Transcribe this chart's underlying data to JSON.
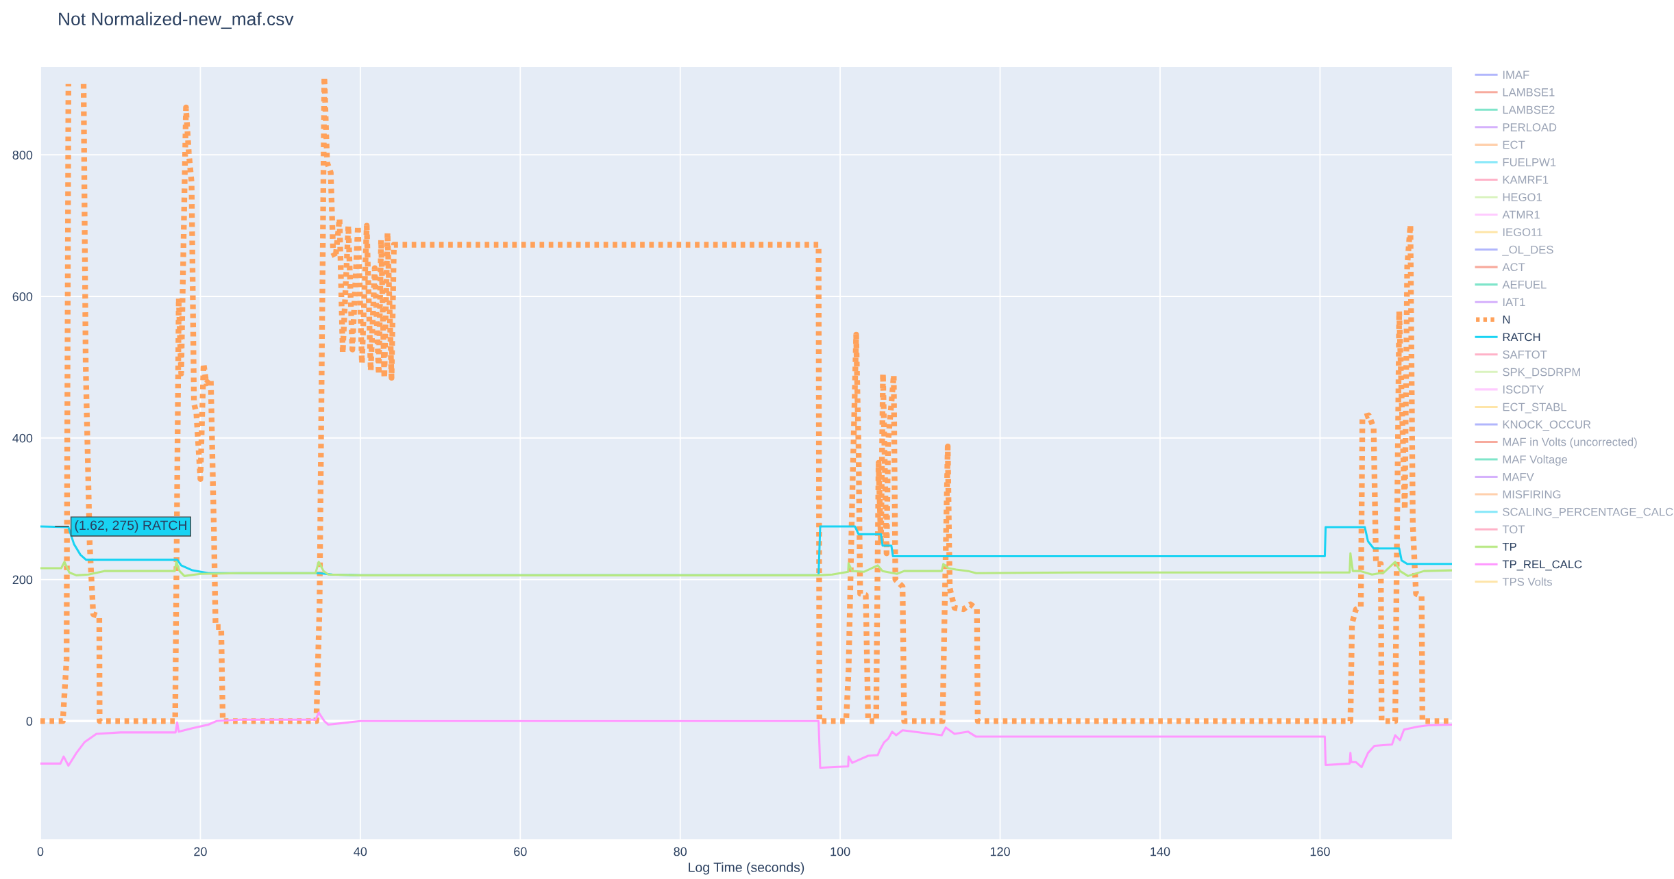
{
  "chart_data": {
    "type": "line",
    "title": "Not Normalized-new_maf.csv",
    "xlabel": "Log Time (seconds)",
    "xlim": [
      0,
      176.5
    ],
    "ylim": [
      -167,
      924
    ],
    "xticks": [
      0,
      20,
      40,
      60,
      80,
      100,
      120,
      140,
      160
    ],
    "yticks": [
      0,
      200,
      400,
      600,
      800
    ],
    "grid": true,
    "legend": "right",
    "annotations": [
      {
        "text": "(1.62, 275) RATCH",
        "x": 1.62,
        "y": 275
      }
    ],
    "series": [
      {
        "name": "IMAF",
        "color": "#636efa"
      },
      {
        "name": "LAMBSE1",
        "color": "#ef553b"
      },
      {
        "name": "LAMBSE2",
        "color": "#00cc96"
      },
      {
        "name": "PERLOAD",
        "color": "#ab63fa"
      },
      {
        "name": "ECT",
        "color": "#ffa15a"
      },
      {
        "name": "FUELPW1",
        "color": "#19d3f3"
      },
      {
        "name": "KAMRF1",
        "color": "#ff6692"
      },
      {
        "name": "HEGO1",
        "color": "#b6e880"
      },
      {
        "name": "ATMR1",
        "color": "#ff97ff"
      },
      {
        "name": "IEGO11",
        "color": "#fecb52"
      },
      {
        "name": "_OL_DES",
        "color": "#636efa"
      },
      {
        "name": "ACT",
        "color": "#ef553b"
      },
      {
        "name": "AEFUEL",
        "color": "#00cc96"
      },
      {
        "name": "IAT1",
        "color": "#ab63fa"
      },
      {
        "name": "N",
        "color": "#ffa15a",
        "line_style": "dotted",
        "x": [
          0,
          2.8,
          3.27,
          3.5,
          4.4,
          5.4,
          5.66,
          6.16,
          6.6,
          7.36,
          7.4,
          16.85,
          17.3,
          17.6,
          18.2,
          18.55,
          18.9,
          19.2,
          19.5,
          20.0,
          20.4,
          20.75,
          21.3,
          21.7,
          21.9,
          22.6,
          22.8,
          34.5,
          34.9,
          35.5,
          35.85,
          36.3,
          36.6,
          36.9,
          37.4,
          37.8,
          38.5,
          39.0,
          39.7,
          40.2,
          40.8,
          41.3,
          41.8,
          42.3,
          42.6,
          43.0,
          43.4,
          43.9,
          44.2,
          97.3,
          97.4,
          100.75,
          101.05,
          101.5,
          102.0,
          102.3,
          102.5,
          103.2,
          103.5,
          104.5,
          104.8,
          105.1,
          105.35,
          105.8,
          106.0,
          106.7,
          106.9,
          107.8,
          108.0,
          112.8,
          113.45,
          113.7,
          114.3,
          115.4,
          116.3,
          117.1,
          117.2,
          163.8,
          164.0,
          164.5,
          165.1,
          165.3,
          166.1,
          166.7,
          167.0,
          167.6,
          167.7,
          169.4,
          169.9,
          170.6,
          170.9,
          171.3,
          171.6,
          172.0,
          172.7,
          172.8,
          176.5
        ],
        "values": [
          0,
          0,
          87,
          900,
          null,
          900,
          505,
          250,
          151,
          148,
          0,
          0,
          598,
          491,
          867,
          803,
          761,
          449,
          435,
          342,
          505,
          477,
          484,
          265,
          133,
          133,
          0,
          0,
          162,
          910,
          789,
          775,
          662,
          655,
          710,
          520,
          700,
          525,
          700,
          505,
          700,
          495,
          640,
          490,
          680,
          485,
          690,
          485,
          673,
          673,
          0,
          0,
          72,
          311,
          546,
          385,
          180,
          178,
          0,
          0,
          365,
          250,
          491,
          237,
          395,
          489,
          200,
          190,
          0,
          0,
          388,
          188,
          160,
          158,
          165,
          158,
          0,
          0,
          138,
          158,
          161,
          429,
          432,
          415,
          222,
          222,
          0,
          0,
          579,
          299,
          643,
          701,
          277,
          180,
          177,
          0,
          0
        ]
      },
      {
        "name": "RATCH",
        "color": "#19d3f3",
        "x": [
          0,
          3.5,
          4.2,
          5.0,
          5.7,
          17.1,
          17.6,
          19.0,
          21.0,
          34.8,
          36.5,
          40,
          97.3,
          97.5,
          101.85,
          102.3,
          105.1,
          105.3,
          106.4,
          106.6,
          160.6,
          160.7,
          165.6,
          166.0,
          166.7,
          169.9,
          170.2,
          170.9,
          176.5
        ],
        "values": [
          275,
          274,
          250,
          235,
          228,
          228,
          220,
          213,
          209,
          209,
          207,
          206,
          206,
          275,
          275,
          264,
          264,
          248,
          248,
          233,
          233,
          274,
          274,
          254,
          244,
          244,
          227,
          222,
          222
        ]
      },
      {
        "name": "SAFTOT",
        "color": "#ff6692"
      },
      {
        "name": "SPK_DSDRPM",
        "color": "#b6e880"
      },
      {
        "name": "ISCDTY",
        "color": "#ff97ff"
      },
      {
        "name": "ECT_STABL",
        "color": "#fecb52"
      },
      {
        "name": "KNOCK_OCCUR",
        "color": "#636efa"
      },
      {
        "name": "MAF in Volts (uncorrected)",
        "color": "#ef553b"
      },
      {
        "name": "MAF Voltage",
        "color": "#00cc96"
      },
      {
        "name": "MAFV",
        "color": "#ab63fa"
      },
      {
        "name": "MISFIRING",
        "color": "#ffa15a"
      },
      {
        "name": "SCALING_PERCENTAGE_CALC",
        "color": "#19d3f3"
      },
      {
        "name": "TOT",
        "color": "#ff6692"
      },
      {
        "name": "TP",
        "color": "#b6e880",
        "x": [
          0,
          2.6,
          3.0,
          3.6,
          4.5,
          6.0,
          8.0,
          16.8,
          17.0,
          17.4,
          18.0,
          20,
          25,
          34.4,
          34.8,
          35.4,
          36.0,
          40,
          97.3,
          99,
          101.0,
          101.05,
          101.5,
          103.0,
          104.7,
          105.3,
          107.1,
          108,
          112.7,
          112.9,
          113.5,
          114.5,
          116,
          117,
          130,
          163.7,
          163.8,
          164.1,
          165.0,
          166.5,
          168.0,
          169.4,
          170.0,
          171.0,
          173.0,
          176.5
        ],
        "values": [
          216,
          216,
          225,
          210,
          206,
          207,
          212,
          212,
          225,
          212,
          205,
          208,
          209,
          209,
          225,
          212,
          207,
          206,
          206,
          207,
          211,
          223,
          212,
          211,
          220,
          212,
          208,
          212,
          212,
          222,
          216,
          214,
          212,
          209,
          210,
          210,
          237,
          212,
          212,
          207,
          210,
          225,
          212,
          205,
          212,
          213
        ]
      },
      {
        "name": "TP_REL_CALC",
        "color": "#ff97ff",
        "x": [
          0,
          2.5,
          2.9,
          3.5,
          4.5,
          5.5,
          7,
          10,
          16.9,
          17.1,
          17.3,
          19,
          21,
          22,
          25,
          34.4,
          34.8,
          35.5,
          36,
          40,
          97.3,
          97.5,
          101.0,
          101.05,
          101.5,
          102.3,
          103.5,
          104.7,
          105.0,
          105.5,
          106.0,
          106.5,
          107.0,
          107.8,
          112.7,
          113.2,
          114.3,
          116,
          117,
          160.6,
          160.7,
          163.7,
          163.8,
          163.9,
          164.5,
          165.2,
          166,
          166.8,
          169,
          169.4,
          170,
          170.5,
          172.2,
          173.5,
          176.5
        ],
        "values": [
          -60,
          -60,
          -50,
          -63,
          -45,
          -30,
          -18,
          -16,
          -16,
          -2,
          -15,
          -10,
          -5,
          0,
          2,
          2,
          12,
          0,
          -5,
          0,
          0,
          -66,
          -64,
          -50,
          -59,
          -55,
          -49,
          -48,
          -40,
          -30,
          -25,
          -15,
          -20,
          -13,
          -20,
          -9,
          -18,
          -15,
          -22,
          -22,
          -62,
          -60,
          -45,
          -58,
          -58,
          -65,
          -45,
          -35,
          -33,
          -20,
          -27,
          -12,
          -8,
          -6,
          -5
        ]
      },
      {
        "name": "TPS Volts",
        "color": "#fecb52"
      }
    ]
  }
}
